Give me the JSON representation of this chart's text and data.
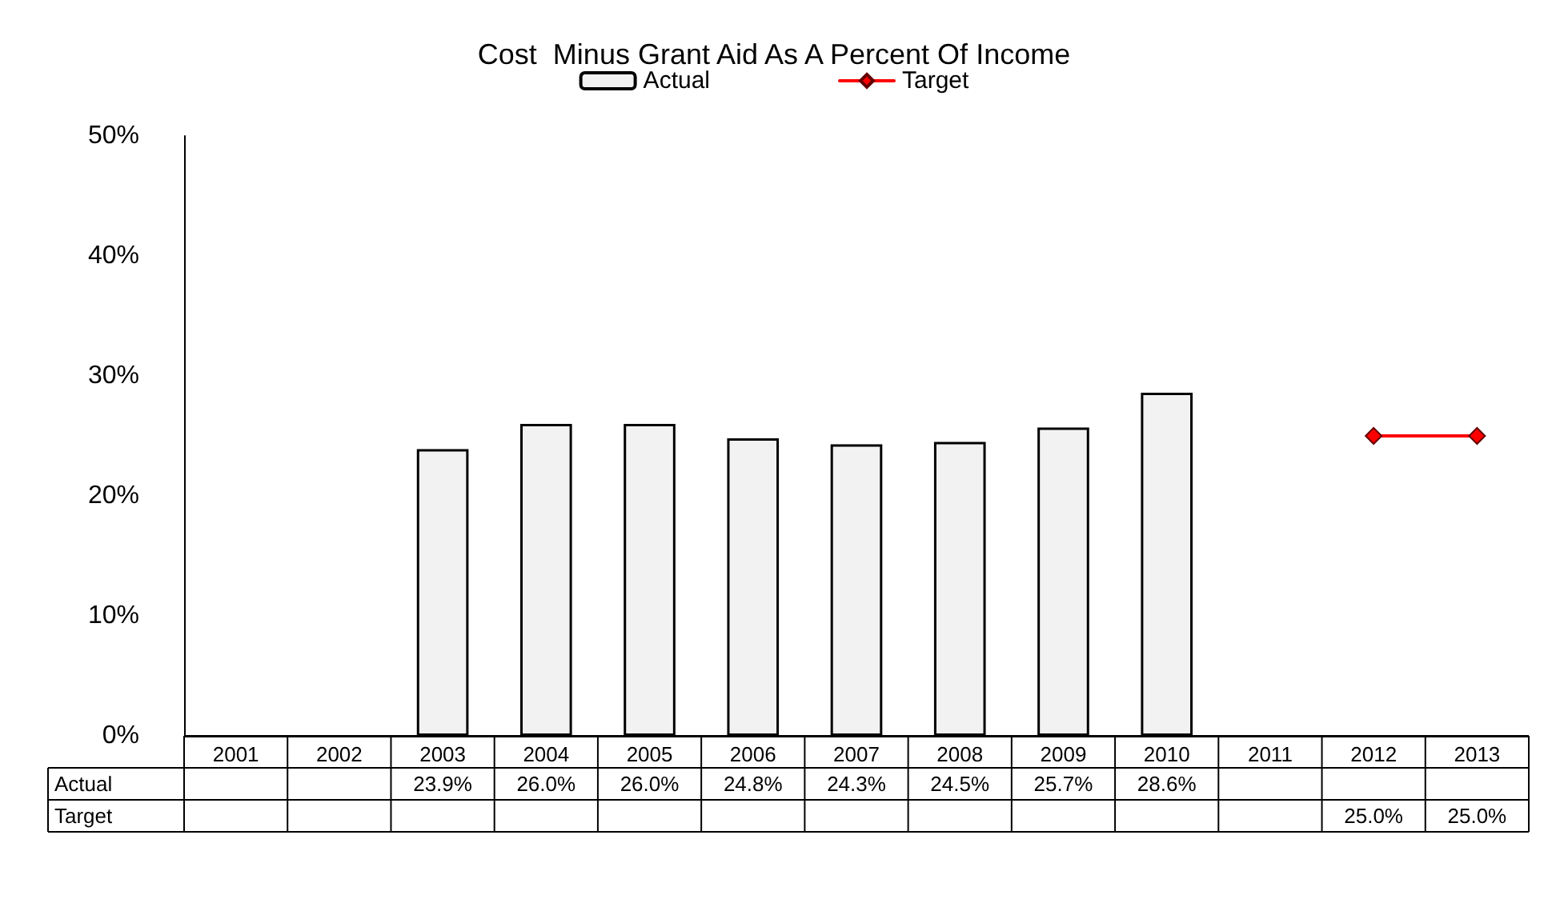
{
  "chart_data": {
    "type": "bar",
    "title": "Cost  Minus Grant Aid As A Percent Of Income",
    "categories": [
      "2001",
      "2002",
      "2003",
      "2004",
      "2005",
      "2006",
      "2007",
      "2008",
      "2009",
      "2010",
      "2011",
      "2012",
      "2013"
    ],
    "series": [
      {
        "name": "Actual",
        "color": "#f2f2f2",
        "values": [
          null,
          null,
          23.9,
          26.0,
          26.0,
          24.8,
          24.3,
          24.5,
          25.7,
          28.6,
          null,
          null,
          null
        ],
        "value_labels": [
          null,
          null,
          "23.9%",
          "26.0%",
          "26.0%",
          "24.8%",
          "24.3%",
          "24.5%",
          "25.7%",
          "28.6%",
          null,
          null,
          null
        ]
      },
      {
        "name": "Target",
        "type": "line",
        "color": "#ff0000",
        "values": [
          null,
          null,
          null,
          null,
          null,
          null,
          null,
          null,
          null,
          null,
          null,
          25.0,
          25.0
        ],
        "value_labels": [
          null,
          null,
          null,
          null,
          null,
          null,
          null,
          null,
          null,
          null,
          null,
          "25.0%",
          "25.0%"
        ]
      }
    ],
    "ylim": [
      0,
      50
    ],
    "yticks": [
      {
        "value": 0,
        "label": "0%"
      },
      {
        "value": 10,
        "label": "10%"
      },
      {
        "value": 20,
        "label": "20%"
      },
      {
        "value": 30,
        "label": "30%"
      },
      {
        "value": 40,
        "label": "40%"
      },
      {
        "value": 50,
        "label": "50%"
      }
    ],
    "grid": false,
    "legend": "top",
    "marker": "diamond",
    "line_style": "solid"
  }
}
